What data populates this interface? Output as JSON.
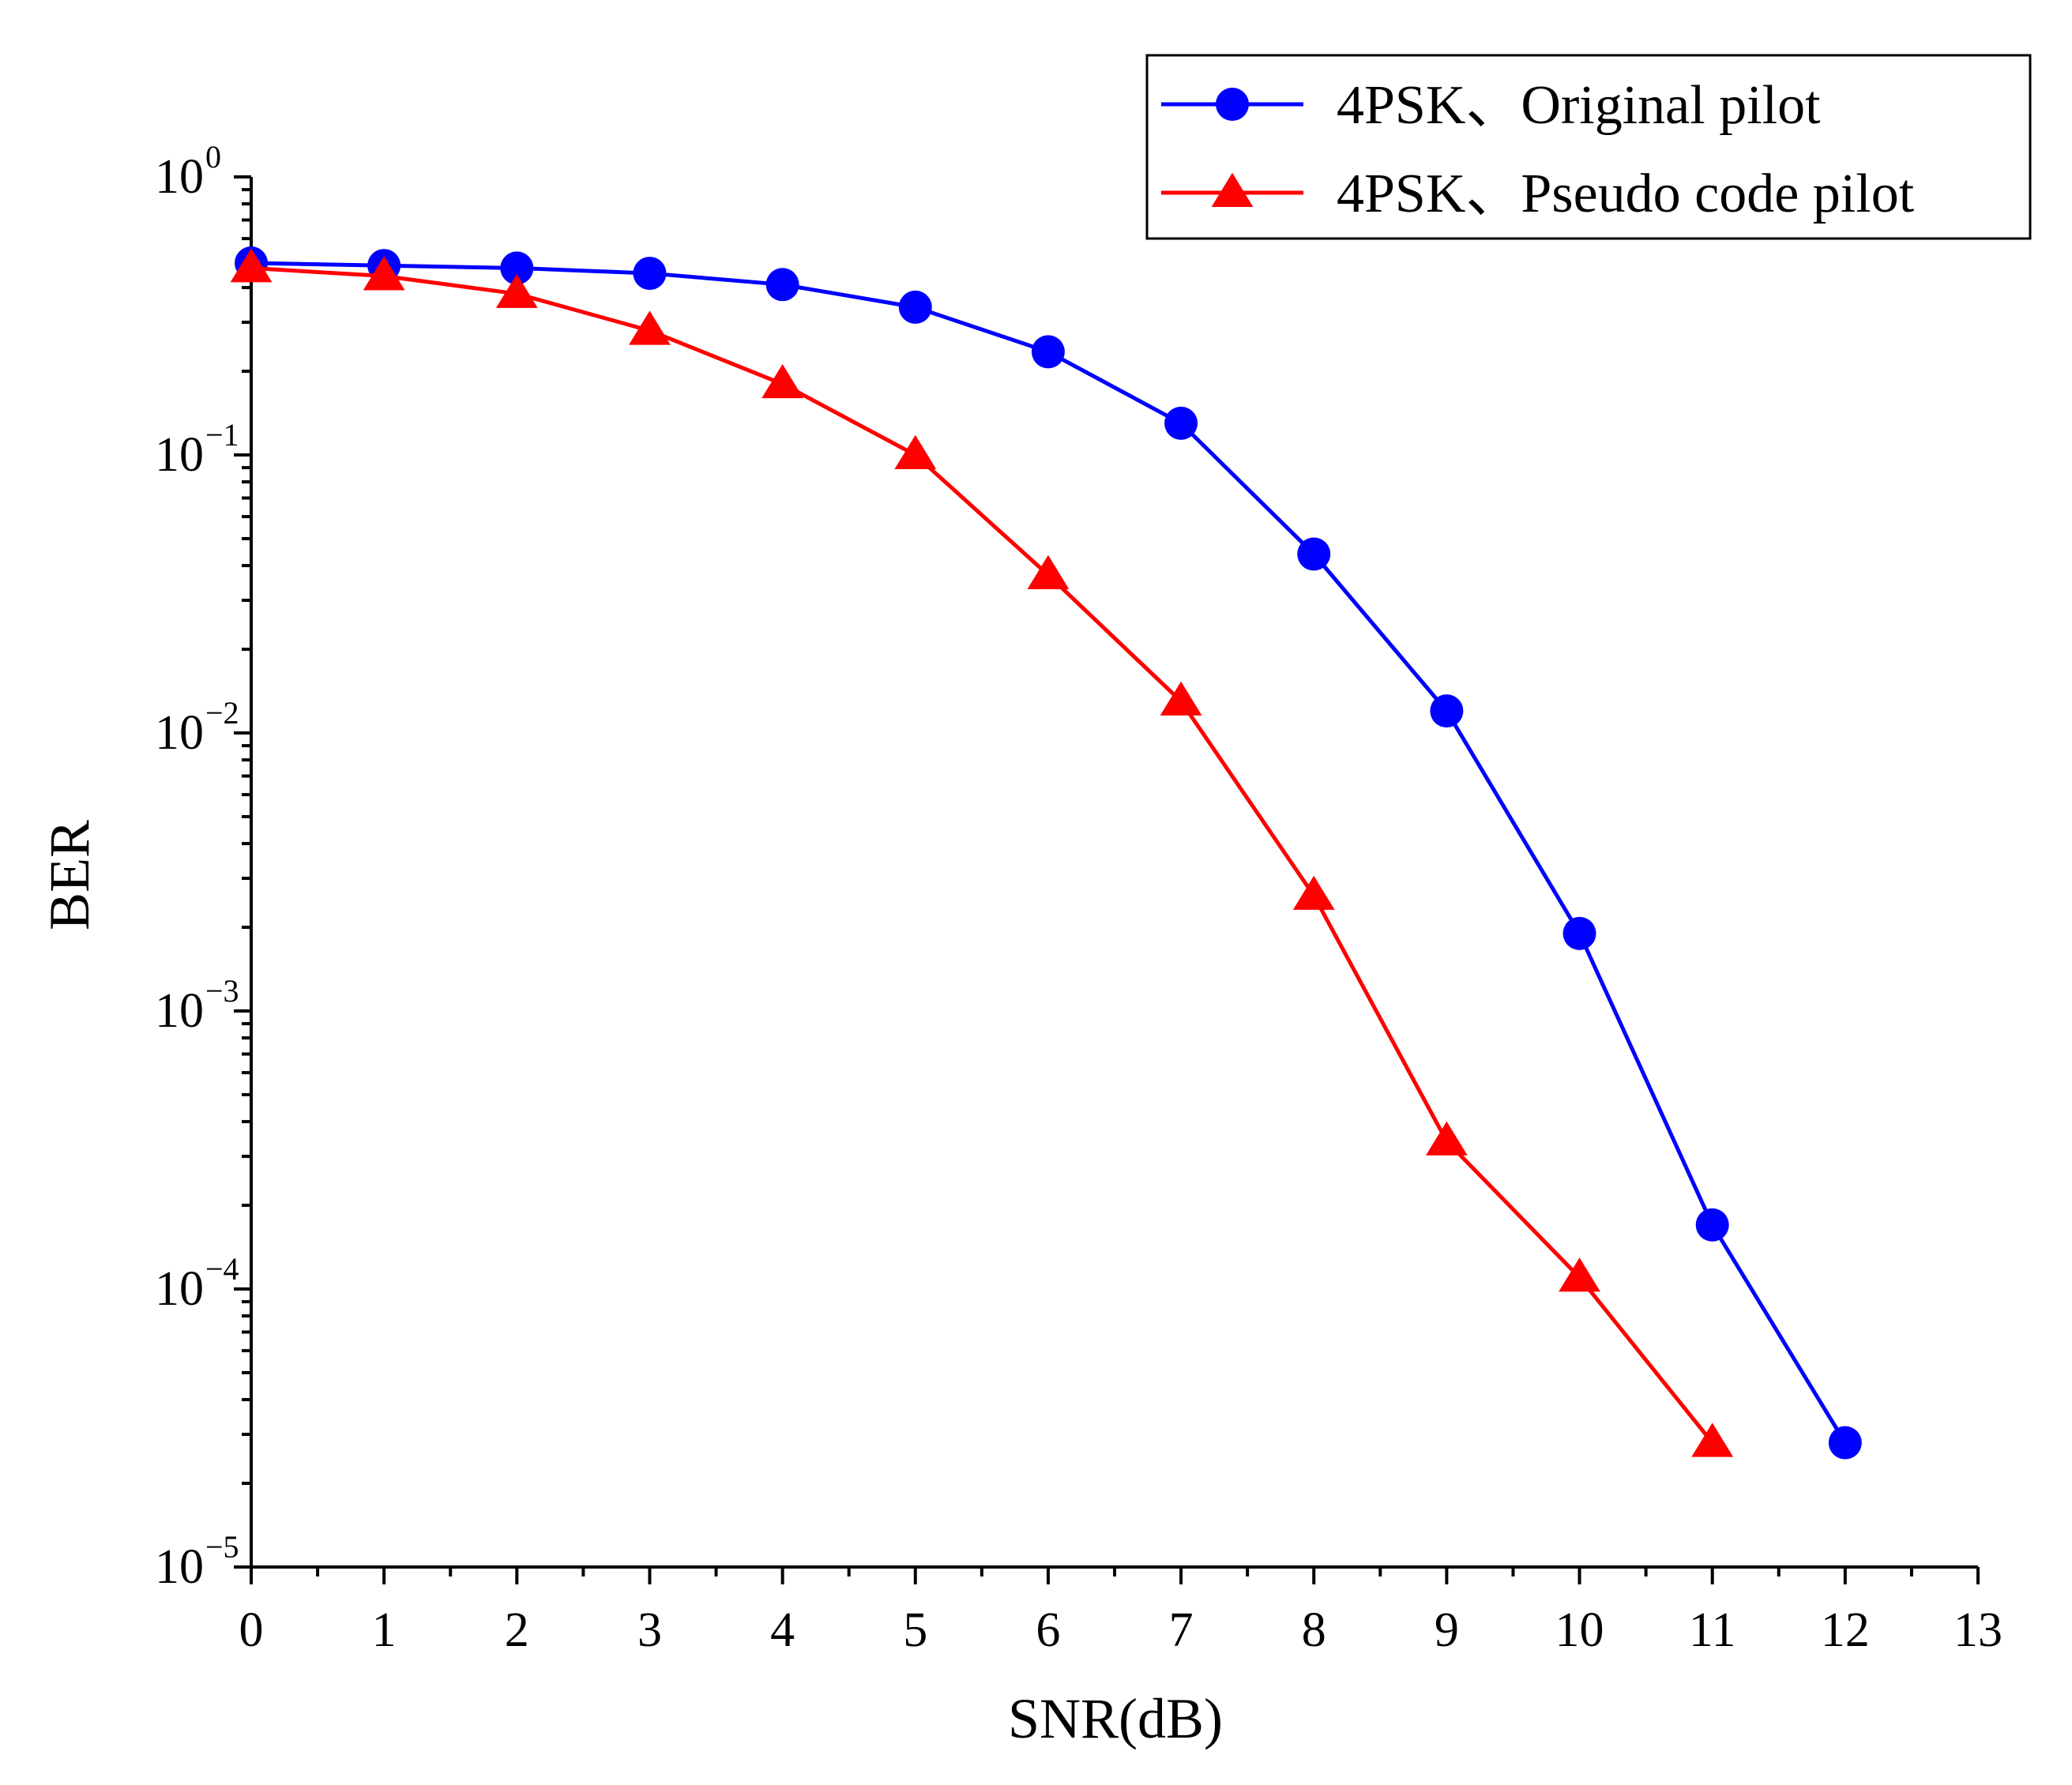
{
  "chart_data": {
    "type": "line",
    "title": "",
    "xlabel": "SNR(dB)",
    "ylabel": "BER",
    "xlim": [
      0,
      13
    ],
    "ylim": [
      1e-05,
      1
    ],
    "yscale": "log",
    "x_ticks": [
      0,
      1,
      2,
      3,
      4,
      5,
      6,
      7,
      8,
      9,
      10,
      11,
      12,
      13
    ],
    "x_tick_labels": [
      "0",
      "1",
      "2",
      "3",
      "4",
      "5",
      "6",
      "7",
      "8",
      "9",
      "10",
      "11",
      "12",
      "13"
    ],
    "y_ticks": [
      {
        "value": 1,
        "base": "10",
        "exp": "0"
      },
      {
        "value": 0.1,
        "base": "10",
        "exp": "−1"
      },
      {
        "value": 0.01,
        "base": "10",
        "exp": "−2"
      },
      {
        "value": 0.001,
        "base": "10",
        "exp": "−3"
      },
      {
        "value": 0.0001,
        "base": "10",
        "exp": "−4"
      },
      {
        "value": 1e-05,
        "base": "10",
        "exp": "−5"
      }
    ],
    "grid": false,
    "legend_position": "top-right",
    "series": [
      {
        "name": "4PSK、Original pilot",
        "color": "#0000ff",
        "marker": "circle",
        "x": [
          0,
          1,
          2,
          3,
          4,
          5,
          6,
          7,
          8,
          9,
          10,
          11,
          12
        ],
        "values": [
          0.49,
          0.48,
          0.47,
          0.45,
          0.41,
          0.34,
          0.235,
          0.13,
          0.044,
          0.012,
          0.0019,
          0.00017,
          2.8e-05
        ]
      },
      {
        "name": "4PSK、Pseudo code pilot",
        "color": "#ff0000",
        "marker": "triangle",
        "x": [
          0,
          1,
          2,
          3,
          4,
          5,
          6,
          7,
          8,
          9,
          10,
          11
        ],
        "values": [
          0.47,
          0.44,
          0.38,
          0.28,
          0.18,
          0.1,
          0.037,
          0.013,
          0.0026,
          0.00034,
          0.00011,
          2.8e-05
        ]
      }
    ]
  }
}
